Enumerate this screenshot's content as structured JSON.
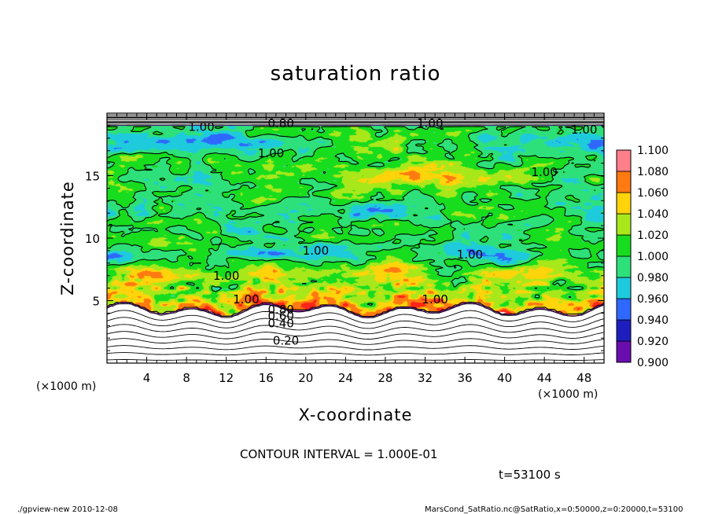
{
  "chart_data": {
    "type": "heatmap",
    "title": "saturation ratio",
    "xlabel": "X-coordinate",
    "ylabel": "Z-coordinate",
    "x_unit": "(×1000 m)",
    "y_unit": "(×1000 m)",
    "xlim": [
      0,
      50
    ],
    "ylim": [
      0,
      20
    ],
    "x_ticks": [
      "4",
      "8",
      "12",
      "16",
      "20",
      "24",
      "28",
      "32",
      "36",
      "40",
      "44",
      "48"
    ],
    "y_ticks": [
      "5",
      "10",
      "15"
    ],
    "contour_interval_text": "CONTOUR INTERVAL = 1.000E-01",
    "time_text": "t=53100 s",
    "contour_labels": [
      {
        "text": "0.20",
        "x": 18,
        "z": 1.6
      },
      {
        "text": "0.40",
        "x": 17.5,
        "z": 3.0
      },
      {
        "text": "0.60",
        "x": 17.5,
        "z": 3.6
      },
      {
        "text": "0.80",
        "x": 17.5,
        "z": 4.1
      },
      {
        "text": "1.00",
        "x": 14,
        "z": 4.9
      },
      {
        "text": "1.00",
        "x": 33,
        "z": 4.9
      },
      {
        "text": "1.00",
        "x": 12,
        "z": 6.8
      },
      {
        "text": "1.00",
        "x": 21,
        "z": 8.8
      },
      {
        "text": "1.00",
        "x": 36.5,
        "z": 8.5
      },
      {
        "text": "1.00",
        "x": 16.5,
        "z": 16.6
      },
      {
        "text": "1.00",
        "x": 44,
        "z": 15.1
      },
      {
        "text": "1.00",
        "x": 9.5,
        "z": 18.7
      },
      {
        "text": "0.80",
        "x": 17.5,
        "z": 19.0
      },
      {
        "text": "1.00",
        "x": 32.5,
        "z": 19.0
      },
      {
        "text": "1.00",
        "x": 48,
        "z": 18.5
      }
    ],
    "colorbar": {
      "levels": [
        "0.900",
        "0.920",
        "0.940",
        "0.960",
        "0.980",
        "1.000",
        "1.020",
        "1.040",
        "1.060",
        "1.080",
        "1.100"
      ],
      "colors": [
        "#6a0dad",
        "#1e1ebe",
        "#2f68ff",
        "#1ecbdc",
        "#2ee07a",
        "#18dc1e",
        "#a8e81a",
        "#ffd40a",
        "#ff7a10",
        "#ff2418",
        "#ff7f8a"
      ]
    }
  },
  "footer": {
    "left": "./gpview-new   2010-12-08",
    "right": "MarsCond_SatRatio.nc@SatRatio,x=0:50000,z=0:20000,t=53100"
  }
}
